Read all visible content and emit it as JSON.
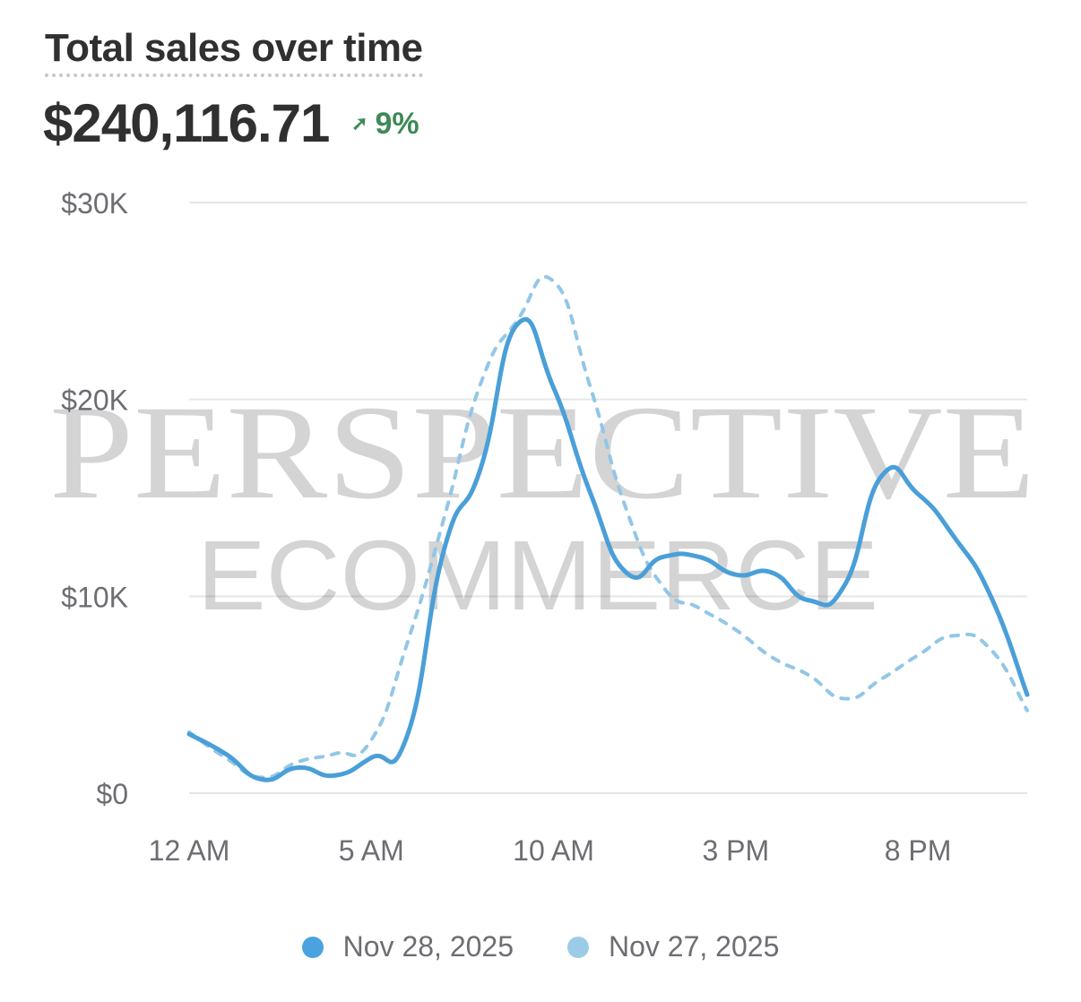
{
  "header": {
    "title": "Total sales over time",
    "total": "$240,116.71",
    "delta": "9%",
    "delta_icon": "arrow-up-right-icon",
    "delta_color": "#3d8a57"
  },
  "watermark": {
    "line1": "PERSPECTIVE",
    "line2": "ECOMMERCE"
  },
  "chart_data": {
    "type": "line",
    "title": "Total sales over time",
    "x": [
      0,
      1,
      2,
      3,
      4,
      5,
      6,
      7,
      8,
      9,
      10,
      11,
      12,
      13,
      14,
      15,
      16,
      17,
      18,
      19,
      20,
      21,
      22,
      23
    ],
    "x_unit": "hour of day",
    "x_ticks": [
      {
        "x": 0,
        "label": "12 AM"
      },
      {
        "x": 5,
        "label": "5 AM"
      },
      {
        "x": 10,
        "label": "10 AM"
      },
      {
        "x": 15,
        "label": "3 PM"
      },
      {
        "x": 20,
        "label": "8 PM"
      }
    ],
    "y_ticks": [
      {
        "y": 0,
        "label": "$0"
      },
      {
        "y": 10000,
        "label": "$10K"
      },
      {
        "y": 20000,
        "label": "$20K"
      },
      {
        "y": 30000,
        "label": "$30K"
      }
    ],
    "ylim": [
      0,
      30000
    ],
    "grid": true,
    "legend_position": "bottom",
    "series": [
      {
        "name": "Nov 28, 2025",
        "color": "#4a9fd8",
        "style": "solid",
        "values": [
          3000,
          2000,
          700,
          1300,
          900,
          1800,
          3000,
          12400,
          16500,
          23800,
          20600,
          15300,
          11200,
          12000,
          12000,
          11100,
          11200,
          9800,
          10600,
          16100,
          15200,
          13000,
          10000,
          5000
        ]
      },
      {
        "name": "Nov 27, 2025",
        "color": "#92c7e6",
        "style": "dashed",
        "values": [
          3100,
          1800,
          800,
          1600,
          2000,
          2700,
          7700,
          14000,
          20800,
          24000,
          26000,
          20700,
          14400,
          10500,
          9400,
          8300,
          6900,
          6000,
          4800,
          5800,
          7000,
          8000,
          7300,
          4200
        ]
      }
    ]
  }
}
